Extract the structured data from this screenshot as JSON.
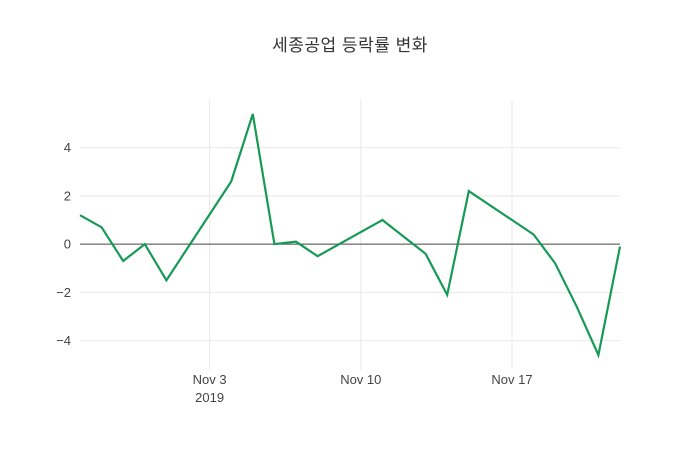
{
  "title": "세종공업 등락률 변화",
  "colors": {
    "line": "#179a56",
    "grid": "#e8e8e8",
    "zeroline": "#444444",
    "tick_label": "#444444",
    "title": "#333333",
    "background": "#ffffff"
  },
  "chart_data": {
    "type": "line",
    "title": "세종공업 등락률 변화",
    "xlabel": "",
    "ylabel": "",
    "legend": "none",
    "grid": true,
    "x": [
      "2019-10-28",
      "2019-10-29",
      "2019-10-30",
      "2019-10-31",
      "2019-11-01",
      "2019-11-04",
      "2019-11-05",
      "2019-11-06",
      "2019-11-07",
      "2019-11-08",
      "2019-11-11",
      "2019-11-12",
      "2019-11-13",
      "2019-11-14",
      "2019-11-15",
      "2019-11-18",
      "2019-11-19",
      "2019-11-20",
      "2019-11-21",
      "2019-11-22"
    ],
    "values": [
      1.2,
      0.7,
      -0.7,
      0.0,
      -1.5,
      2.6,
      5.4,
      0.0,
      0.1,
      -0.5,
      1.0,
      0.3,
      -0.4,
      -2.1,
      2.2,
      0.4,
      -0.8,
      -2.6,
      -4.6,
      -0.1
    ],
    "ylim": [
      -5.2,
      6.0
    ],
    "yticks": [
      {
        "value": -4,
        "label": "−4"
      },
      {
        "value": -2,
        "label": "−2"
      },
      {
        "value": 0,
        "label": "0"
      },
      {
        "value": 2,
        "label": "2"
      },
      {
        "value": 4,
        "label": "4"
      }
    ],
    "xticks": [
      {
        "date": "2019-11-03",
        "label": "Nov 3",
        "sublabel": "2019"
      },
      {
        "date": "2019-11-10",
        "label": "Nov 10",
        "sublabel": ""
      },
      {
        "date": "2019-11-17",
        "label": "Nov 17",
        "sublabel": ""
      }
    ]
  }
}
